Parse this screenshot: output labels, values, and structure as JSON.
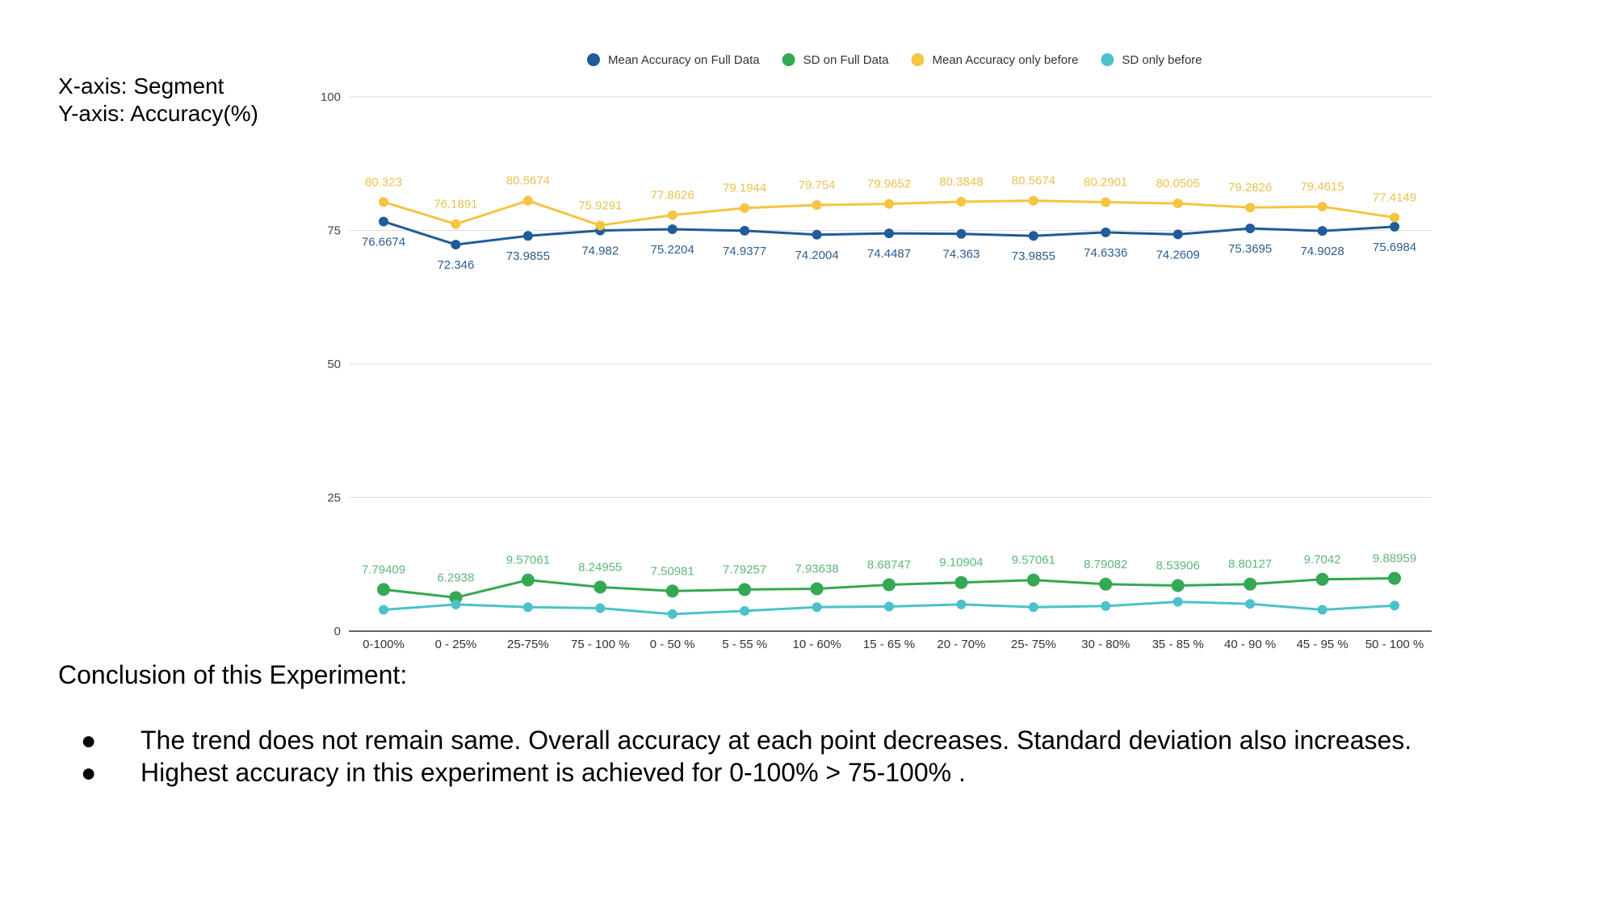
{
  "axis_note": {
    "x_line": "X-axis: Segment",
    "y_line": "Y-axis: Accuracy(%)"
  },
  "conclusion": {
    "title": "Conclusion of this Experiment:",
    "bullet_symbol": "●",
    "bullets": [
      "The trend does not remain same. Overall accuracy at each point decreases. Standard deviation also increases.",
      "Highest accuracy in this experiment is achieved for 0-100% > 75-100% ."
    ]
  },
  "chart_data": {
    "type": "line",
    "title": "",
    "xlabel": "",
    "ylabel": "",
    "ylim": [
      0,
      100
    ],
    "yticks": [
      0,
      25,
      50,
      75,
      100
    ],
    "grid": true,
    "legend_position": "top",
    "categories": [
      "0-100%",
      "0 - 25%",
      "25-75%",
      "75 - 100 %",
      "0 - 50 %",
      "5 - 55 %",
      "10 - 60%",
      "15 - 65 %",
      "20 - 70%",
      "25- 75%",
      "30 - 80%",
      "35 - 85 %",
      "40 - 90 %",
      "45 - 95 %",
      "50 - 100 %"
    ],
    "series": [
      {
        "name": "Mean Accuracy on Full Data",
        "color": "#1f5c99",
        "labels": true,
        "label_position": "below",
        "values": [
          76.6674,
          72.346,
          73.9855,
          74.982,
          75.2204,
          74.9377,
          74.2004,
          74.4487,
          74.363,
          73.9855,
          74.6336,
          74.2609,
          75.3695,
          74.9028,
          75.6984
        ]
      },
      {
        "name": "SD on Full Data",
        "color": "#34a853",
        "labels": true,
        "label_position": "above",
        "values": [
          7.79409,
          6.2938,
          9.57061,
          8.24955,
          7.50981,
          7.79257,
          7.93638,
          8.68747,
          9.10904,
          9.57061,
          8.79082,
          8.53906,
          8.80127,
          9.7042,
          9.88959
        ]
      },
      {
        "name": "Mean Accuracy only before",
        "color": "#f4c542",
        "labels": true,
        "label_position": "above",
        "values": [
          80.323,
          76.1891,
          80.5674,
          75.9291,
          77.8626,
          79.1944,
          79.754,
          79.9652,
          80.3848,
          80.5674,
          80.2901,
          80.0505,
          79.2826,
          79.4615,
          77.4149
        ]
      },
      {
        "name": "SD only before",
        "color": "#4cc1c9",
        "labels": false,
        "values": [
          4.0,
          5.0,
          4.5,
          4.3,
          3.2,
          3.8,
          4.5,
          4.6,
          5.0,
          4.5,
          4.7,
          5.5,
          5.1,
          4.0,
          4.8
        ]
      }
    ]
  }
}
